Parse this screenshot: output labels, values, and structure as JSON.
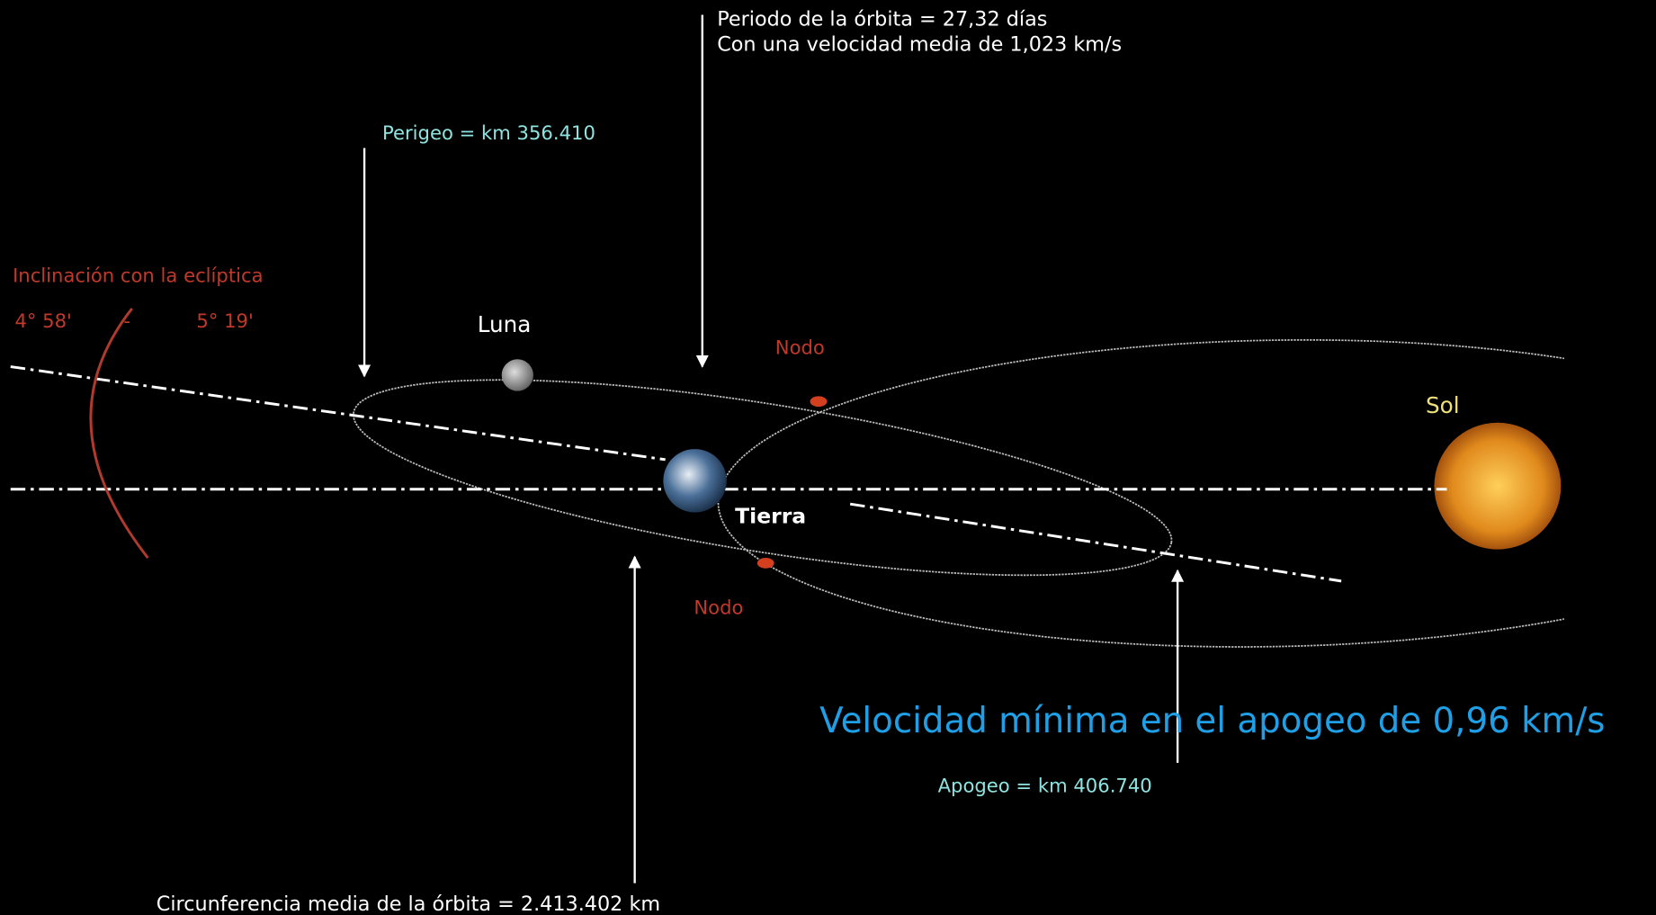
{
  "period": {
    "line1": "Periodo de la órbita = 27,32 días",
    "line2": "Con una velocidad media de 1,023 km/s"
  },
  "perigee": "Perigeo = km 356.410",
  "inclination": {
    "title": "Inclinación con la eclíptica",
    "min": "4° 58'",
    "separator": "-",
    "max": "5° 19'"
  },
  "moon": "Luna",
  "earth": "Tierra",
  "sun": "Sol",
  "nodes": [
    "Nodo",
    "Nodo"
  ],
  "apogee_speed": "Velocidad mínima en el apogeo de 0,96 km/s",
  "apogee": "Apogeo = km 406.740",
  "circumference": "Circunferencia media de la órbita = 2.413.402 km"
}
